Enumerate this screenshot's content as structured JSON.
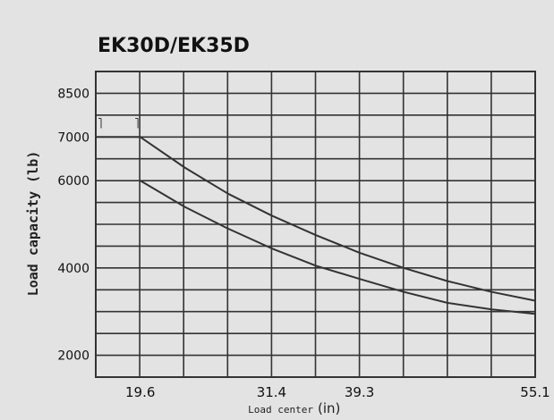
{
  "chart_data": {
    "type": "line",
    "title": "EK30D/EK35D",
    "xlabel_text": "Load center",
    "xlabel_unit": "(in)",
    "ylabel": "Load capacity (lb)",
    "x_ticks": [
      "19.6",
      "31.4",
      "39.3",
      "55.1"
    ],
    "y_ticks": [
      "8500",
      "7000",
      "6000",
      "4000",
      "2000"
    ],
    "xlim": [
      15.6,
      55.1
    ],
    "y_ticks_numeric": [
      8500,
      7000,
      6000,
      4000,
      2000
    ],
    "series": [
      {
        "x": [
          15.6,
          19.6,
          23.6,
          27.5,
          31.4,
          35.4,
          39.3,
          43.3,
          47.2,
          51.2,
          55.1
        ],
        "y": [
          7000,
          7000,
          6300,
          5700,
          5200,
          4750,
          4350,
          4000,
          3700,
          3450,
          3250
        ]
      },
      {
        "x": [
          19.6,
          23.6,
          27.5,
          31.4,
          35.4,
          39.3,
          43.3,
          47.2,
          51.2,
          55.1
        ],
        "y": [
          6000,
          5400,
          4900,
          4450,
          4050,
          3750,
          3450,
          3200,
          3050,
          2950
        ]
      }
    ],
    "grid": true,
    "colors": {
      "background": "#e3e3e3",
      "line": "#333333",
      "text": "#111111"
    }
  }
}
